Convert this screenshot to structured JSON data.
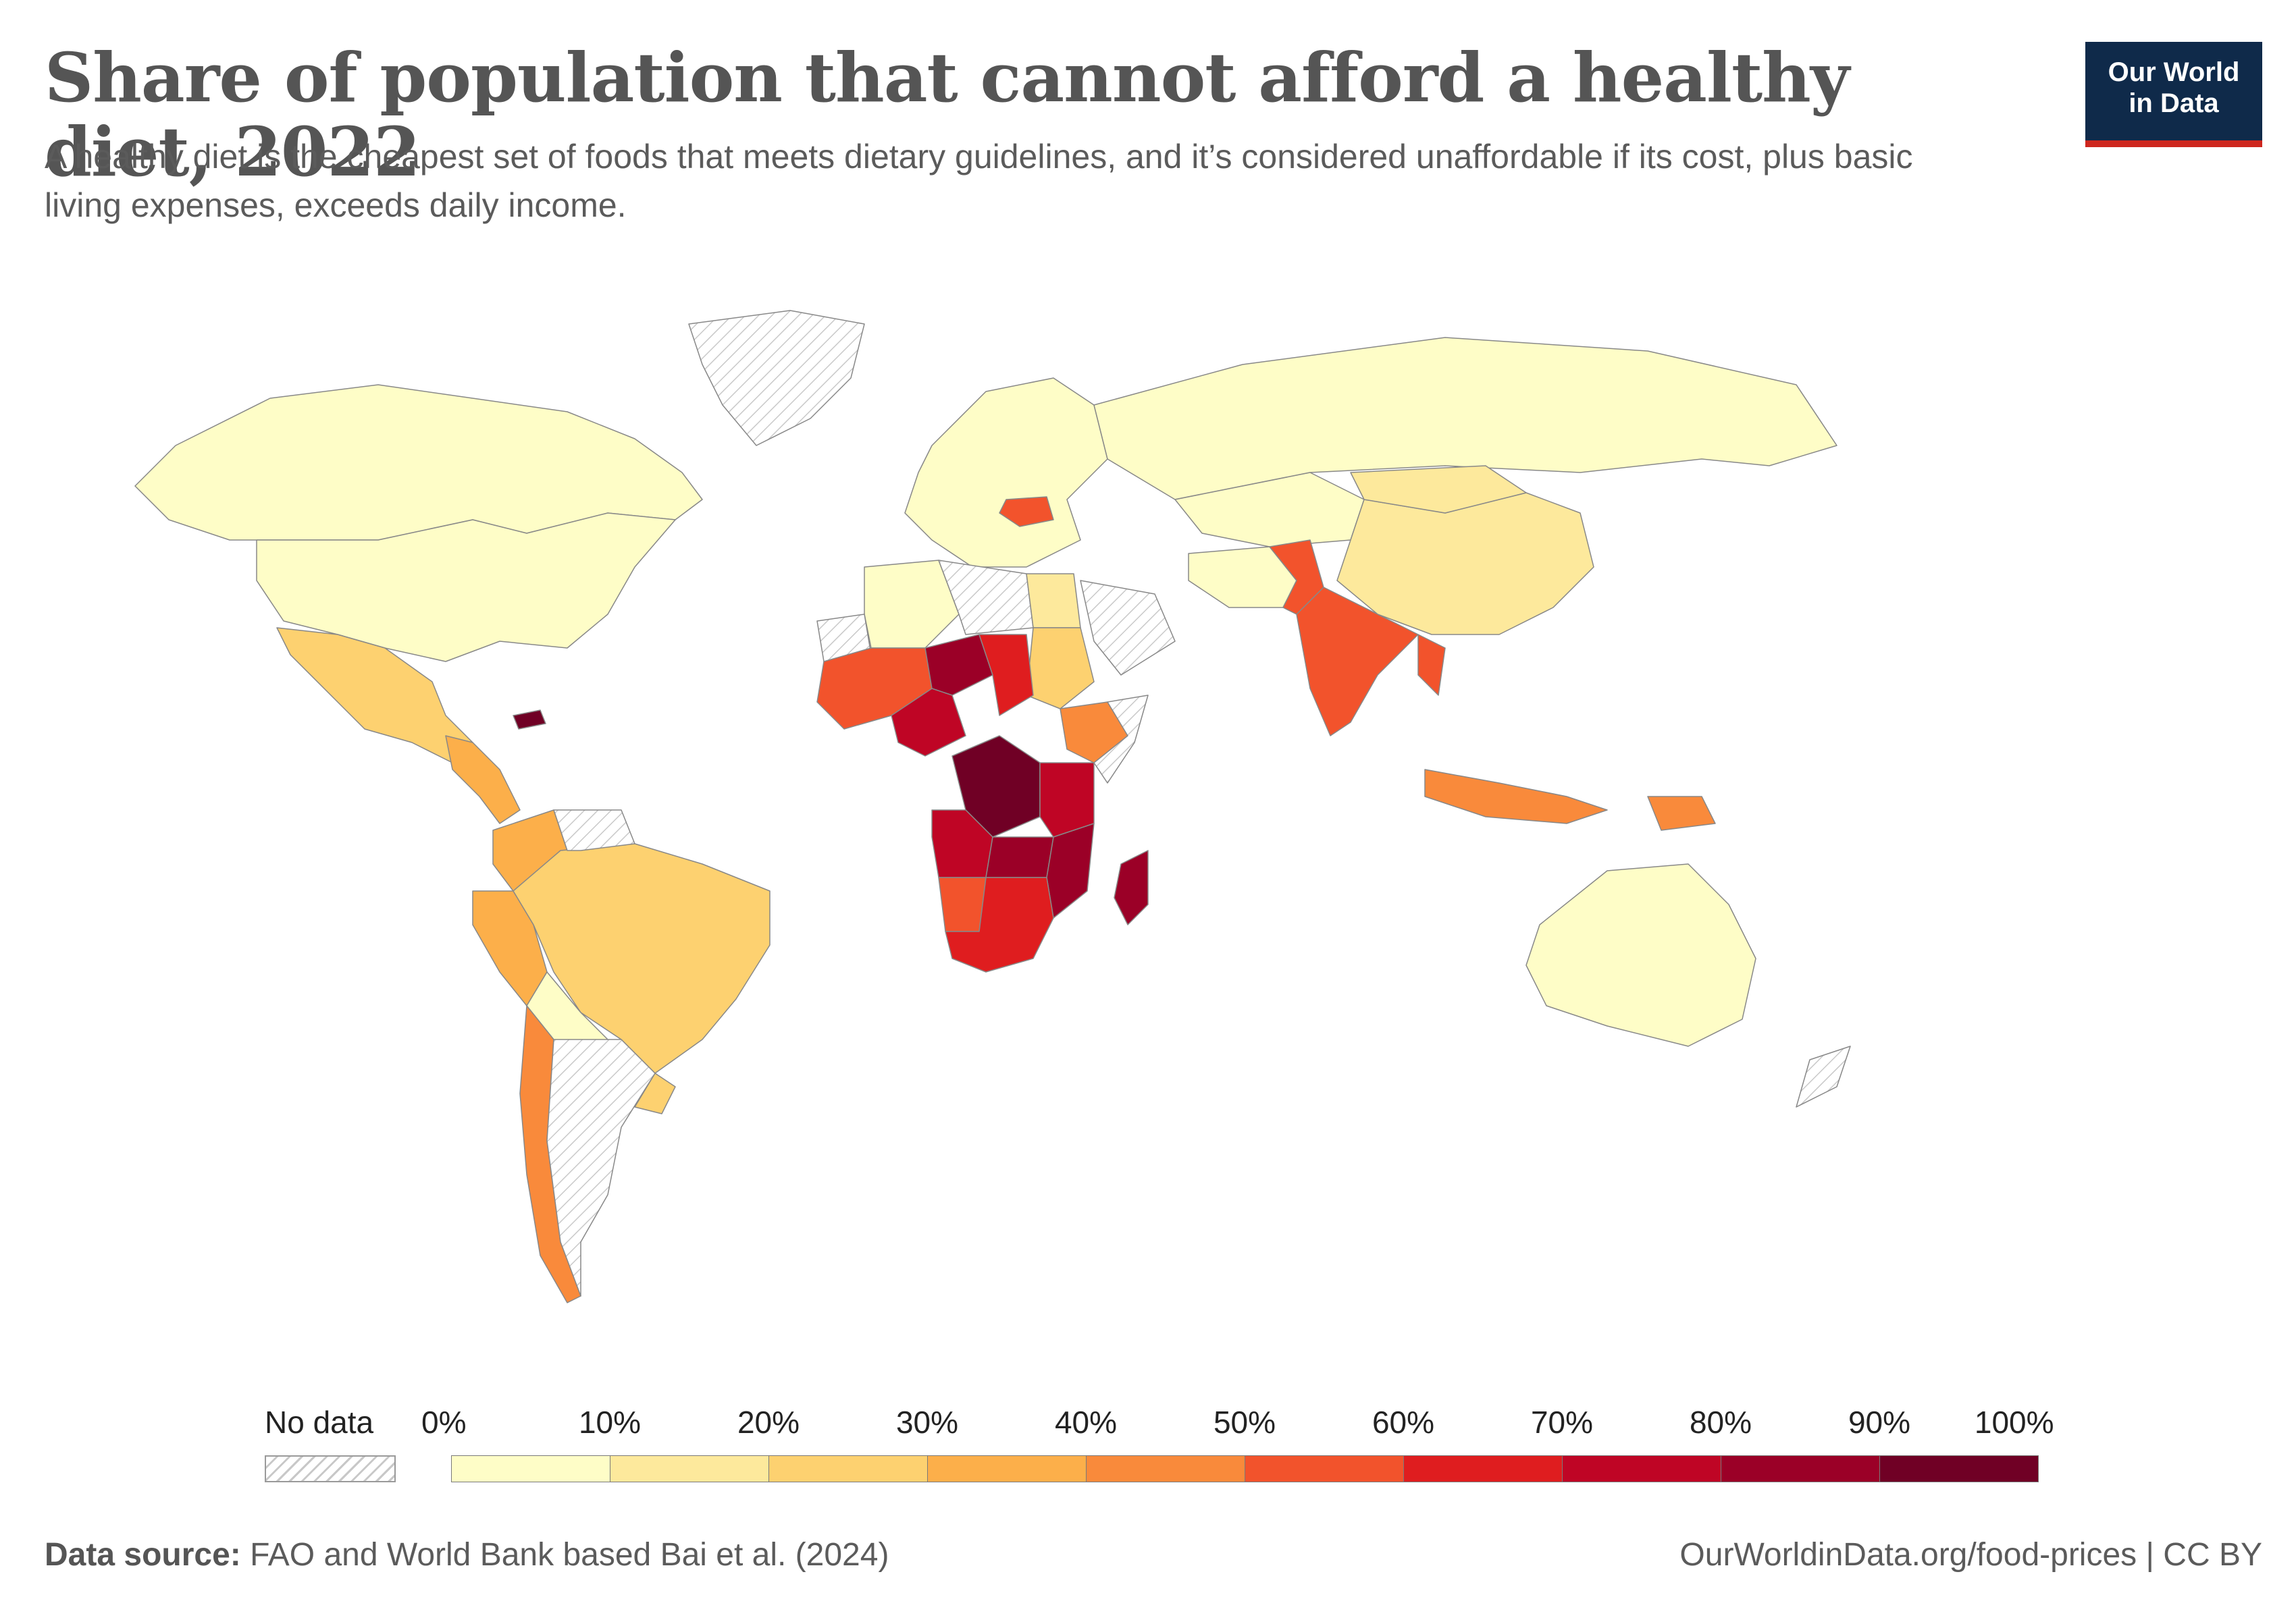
{
  "header": {
    "title": "Share of population that cannot afford a healthy diet, 2022",
    "subtitle": "A healthy diet is the cheapest set of foods that meets dietary guidelines, and it’s considered unaffordable if its cost, plus basic living expenses, exceeds daily income."
  },
  "logo": {
    "line1": "Our World",
    "line2": "in Data",
    "bg_color": "#0f2a4a",
    "accent_color": "#ce261e"
  },
  "legend": {
    "no_data_label": "No data",
    "ticks": [
      "0%",
      "10%",
      "20%",
      "30%",
      "40%",
      "50%",
      "60%",
      "70%",
      "80%",
      "90%",
      "100%"
    ],
    "bins": [
      {
        "from": 0,
        "to": 10,
        "color": "#fefdc7"
      },
      {
        "from": 10,
        "to": 20,
        "color": "#fde99c"
      },
      {
        "from": 20,
        "to": 30,
        "color": "#fdd170"
      },
      {
        "from": 30,
        "to": 40,
        "color": "#fcaf4a"
      },
      {
        "from": 40,
        "to": 50,
        "color": "#f98a3b"
      },
      {
        "from": 50,
        "to": 60,
        "color": "#f2532c"
      },
      {
        "from": 60,
        "to": 70,
        "color": "#df1d1f"
      },
      {
        "from": 70,
        "to": 80,
        "color": "#bf0525"
      },
      {
        "from": 80,
        "to": 90,
        "color": "#9b0027"
      },
      {
        "from": 90,
        "to": 100,
        "color": "#700025"
      }
    ]
  },
  "footer": {
    "source_label": "Data source:",
    "source_text": "FAO and World Bank based Bai et al. (2024)",
    "url_license": "OurWorldinData.org/food-prices | CC BY"
  },
  "regions": [
    {
      "name": "Canada",
      "bin": 0
    },
    {
      "name": "United States",
      "bin": 0
    },
    {
      "name": "Mexico",
      "bin": 2
    },
    {
      "name": "Central America",
      "bin": 3
    },
    {
      "name": "Haiti",
      "bin": 9
    },
    {
      "name": "Colombia",
      "bin": 3
    },
    {
      "name": "Peru",
      "bin": 3
    },
    {
      "name": "Brazil",
      "bin": 2
    },
    {
      "name": "Bolivia",
      "bin": 0
    },
    {
      "name": "Chile",
      "bin": 4
    },
    {
      "name": "Uruguay",
      "bin": 2
    },
    {
      "name": "Argentina",
      "bin": -1
    },
    {
      "name": "Venezuela",
      "bin": -1
    },
    {
      "name": "Greenland",
      "bin": -1
    },
    {
      "name": "Europe",
      "bin": 0
    },
    {
      "name": "Romania",
      "bin": 5
    },
    {
      "name": "Russia",
      "bin": 0
    },
    {
      "name": "Kazakhstan",
      "bin": 0
    },
    {
      "name": "Iran",
      "bin": 0
    },
    {
      "name": "China",
      "bin": 1
    },
    {
      "name": "Mongolia",
      "bin": 1
    },
    {
      "name": "India",
      "bin": 5
    },
    {
      "name": "Pakistan",
      "bin": 5
    },
    {
      "name": "Myanmar",
      "bin": 5
    },
    {
      "name": "Indonesia",
      "bin": 4
    },
    {
      "name": "Papua New Guinea",
      "bin": 4
    },
    {
      "name": "Australia",
      "bin": 0
    },
    {
      "name": "Algeria",
      "bin": 0
    },
    {
      "name": "Libya",
      "bin": -1
    },
    {
      "name": "Egypt",
      "bin": 1
    },
    {
      "name": "Sudan",
      "bin": 2
    },
    {
      "name": "Mauritania",
      "bin": -1
    },
    {
      "name": "West Sahel",
      "bin": 5
    },
    {
      "name": "Niger",
      "bin": 8
    },
    {
      "name": "Chad",
      "bin": 6
    },
    {
      "name": "Nigeria",
      "bin": 7
    },
    {
      "name": "Ethiopia",
      "bin": 4
    },
    {
      "name": "Somalia",
      "bin": -1
    },
    {
      "name": "DR Congo",
      "bin": 9
    },
    {
      "name": "Tanzania",
      "bin": 7
    },
    {
      "name": "Angola",
      "bin": 7
    },
    {
      "name": "Zambia",
      "bin": 8
    },
    {
      "name": "Mozambique",
      "bin": 8
    },
    {
      "name": "Madagascar",
      "bin": 8
    },
    {
      "name": "Namibia",
      "bin": 5
    },
    {
      "name": "South Africa",
      "bin": 6
    },
    {
      "name": "Saudi Arabia",
      "bin": -1
    },
    {
      "name": "New Zealand",
      "bin": -1
    }
  ]
}
